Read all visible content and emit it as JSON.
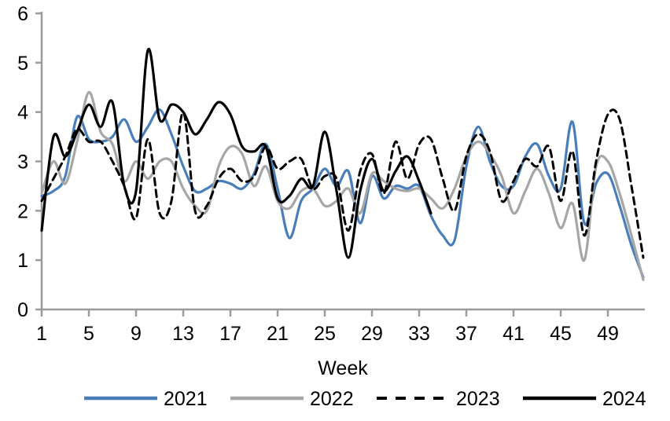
{
  "chart_data": {
    "type": "line",
    "title": "",
    "xlabel": "Week",
    "ylabel": "",
    "xlim": [
      1,
      52
    ],
    "ylim": [
      0,
      6
    ],
    "yticks": [
      0,
      1,
      2,
      3,
      4,
      5,
      6
    ],
    "xticks": [
      1,
      5,
      9,
      13,
      17,
      21,
      25,
      29,
      33,
      37,
      41,
      45,
      49
    ],
    "grid": false,
    "legend_position": "bottom",
    "axis_color": "#9b9b9b",
    "x": [
      1,
      2,
      3,
      4,
      5,
      6,
      7,
      8,
      9,
      10,
      11,
      12,
      13,
      14,
      15,
      16,
      17,
      18,
      19,
      20,
      21,
      22,
      23,
      24,
      25,
      26,
      27,
      28,
      29,
      30,
      31,
      32,
      33,
      34,
      35,
      36,
      37,
      38,
      39,
      40,
      41,
      42,
      43,
      44,
      45,
      46,
      47,
      48,
      49,
      50,
      51,
      52
    ],
    "series": [
      {
        "name": "2021",
        "color": "#4a7ebb",
        "style": "solid",
        "values": [
          2.3,
          2.4,
          2.7,
          3.9,
          3.45,
          3.4,
          3.5,
          3.85,
          3.4,
          3.7,
          4.05,
          3.55,
          2.9,
          2.4,
          2.45,
          2.6,
          2.55,
          2.45,
          2.75,
          3.35,
          2.45,
          1.45,
          2.2,
          2.45,
          2.85,
          2.5,
          2.8,
          1.75,
          2.7,
          2.25,
          2.5,
          2.45,
          2.5,
          1.9,
          1.5,
          1.4,
          2.9,
          3.7,
          3.0,
          2.5,
          2.5,
          3.1,
          3.35,
          2.7,
          2.45,
          3.8,
          1.75,
          2.55,
          2.75,
          2.1,
          1.3,
          0.65
        ]
      },
      {
        "name": "2022",
        "color": "#a6a6a6",
        "style": "solid",
        "values": [
          2.35,
          3.0,
          2.55,
          3.4,
          4.4,
          3.6,
          3.35,
          2.6,
          3.0,
          2.65,
          3.0,
          3.0,
          2.45,
          2.1,
          2.0,
          2.9,
          3.3,
          3.15,
          2.5,
          2.9,
          2.2,
          2.05,
          2.4,
          2.45,
          2.1,
          2.2,
          2.45,
          1.95,
          2.75,
          2.6,
          2.45,
          2.4,
          2.45,
          2.25,
          2.05,
          2.45,
          3.1,
          3.4,
          3.15,
          2.7,
          1.95,
          2.4,
          2.85,
          2.35,
          1.65,
          2.15,
          1.0,
          2.9,
          3.0,
          2.35,
          1.5,
          0.6
        ]
      },
      {
        "name": "2023",
        "color": "#000000",
        "style": "dashed",
        "values": [
          2.2,
          2.65,
          3.1,
          3.65,
          3.4,
          3.4,
          3.0,
          2.5,
          1.85,
          3.45,
          1.95,
          2.2,
          4.0,
          2.0,
          2.1,
          2.65,
          2.85,
          2.6,
          2.7,
          3.3,
          2.85,
          3.0,
          3.05,
          2.45,
          2.7,
          2.65,
          1.6,
          2.8,
          3.15,
          2.35,
          3.4,
          2.65,
          3.35,
          3.45,
          2.65,
          2.0,
          3.1,
          3.55,
          3.2,
          2.2,
          2.6,
          3.05,
          2.9,
          3.3,
          2.2,
          3.2,
          1.5,
          3.0,
          3.95,
          3.85,
          2.5,
          1.05
        ]
      },
      {
        "name": "2024",
        "color": "#000000",
        "style": "solid",
        "values": [
          1.6,
          3.5,
          3.1,
          3.6,
          4.15,
          3.7,
          4.2,
          2.5,
          2.4,
          5.25,
          3.85,
          4.15,
          4.0,
          3.55,
          3.85,
          4.2,
          3.95,
          3.3,
          3.2,
          3.3,
          2.25,
          2.3,
          2.65,
          2.5,
          3.6,
          2.4,
          1.05,
          2.4,
          3.05,
          2.4,
          2.8,
          3.1,
          2.6,
          1.95
        ]
      }
    ]
  }
}
